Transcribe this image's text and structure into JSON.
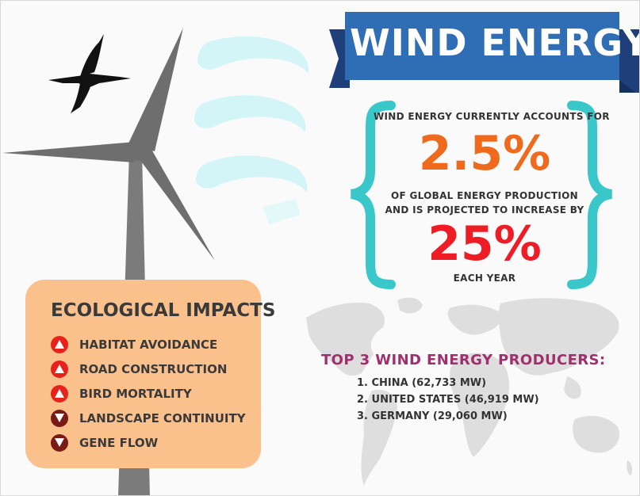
{
  "banner": {
    "title": "WIND ENERGY"
  },
  "stats": {
    "line1": "WIND ENERGY CURRENTLY ACCOUNTS FOR",
    "value1": "2.5%",
    "line2": "OF GLOBAL ENERGY PRODUCTION",
    "line3": "AND IS PROJECTED TO INCREASE BY",
    "value2": "25%",
    "line4": "EACH YEAR"
  },
  "impacts": {
    "title": "ECOLOGICAL IMPACTS",
    "items": [
      {
        "label": "HABITAT AVOIDANCE",
        "direction": "up",
        "icon": "triangle-up-icon"
      },
      {
        "label": "ROAD CONSTRUCTION",
        "direction": "up",
        "icon": "triangle-up-icon"
      },
      {
        "label": "BIRD MORTALITY",
        "direction": "up",
        "icon": "triangle-up-icon"
      },
      {
        "label": "LANDSCAPE CONTINUITY",
        "direction": "down",
        "icon": "triangle-down-icon"
      },
      {
        "label": "GENE FLOW",
        "direction": "down",
        "icon": "triangle-down-icon"
      }
    ]
  },
  "producers": {
    "title": "TOP 3 WIND ENERGY PRODUCERS:",
    "items": [
      "1. CHINA (62,733 MW)",
      "2. UNITED STATES (46,919 MW)",
      "3. GERMANY (29,060 MW)"
    ]
  },
  "colors": {
    "banner_blue": "#2f6db5",
    "banner_dark": "#1e3f7a",
    "brace_teal": "#39c7c9",
    "value_orange": "#f06a1e",
    "value_red": "#ee1c25",
    "card_peach": "#fbc18d",
    "up_red": "#e8211b",
    "down_darkred": "#7a1a14",
    "turbine_grey": "#7b7b7b",
    "map_grey": "#dcdcdc",
    "producer_title": "#a0306d"
  }
}
